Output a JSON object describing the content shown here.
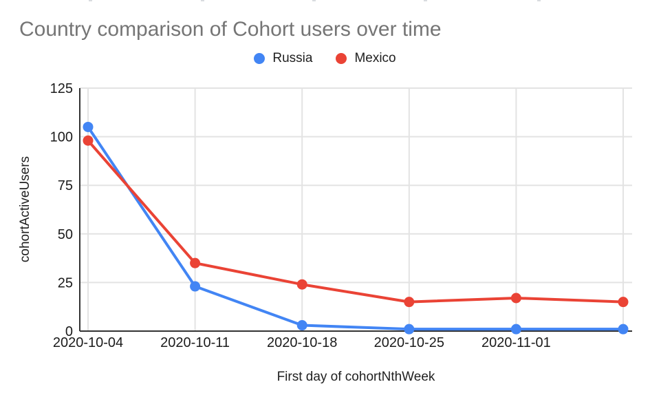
{
  "chart_data": {
    "type": "line",
    "title": "Country comparison of Cohort users over time",
    "xlabel": "First day of cohortNthWeek",
    "ylabel": "cohortActiveUsers",
    "x_tick_labels": [
      "2020-10-04",
      "2020-10-11",
      "2020-10-18",
      "2020-10-25",
      "2020-11-01"
    ],
    "num_points": 6,
    "series": [
      {
        "name": "Russia",
        "color": "#4285f4",
        "values": [
          105,
          23,
          3,
          1,
          1,
          1
        ]
      },
      {
        "name": "Mexico",
        "color": "#ea4335",
        "values": [
          98,
          35,
          24,
          15,
          17,
          15
        ]
      }
    ],
    "y_ticks": [
      0,
      25,
      50,
      75,
      100,
      125
    ],
    "ylim": [
      0,
      125
    ],
    "grid": true,
    "legend_position": "top",
    "colors": {
      "grid": "#e3e3e3",
      "axis": "#333333",
      "tick_label": "#1b1b1b",
      "title": "#757575"
    }
  }
}
